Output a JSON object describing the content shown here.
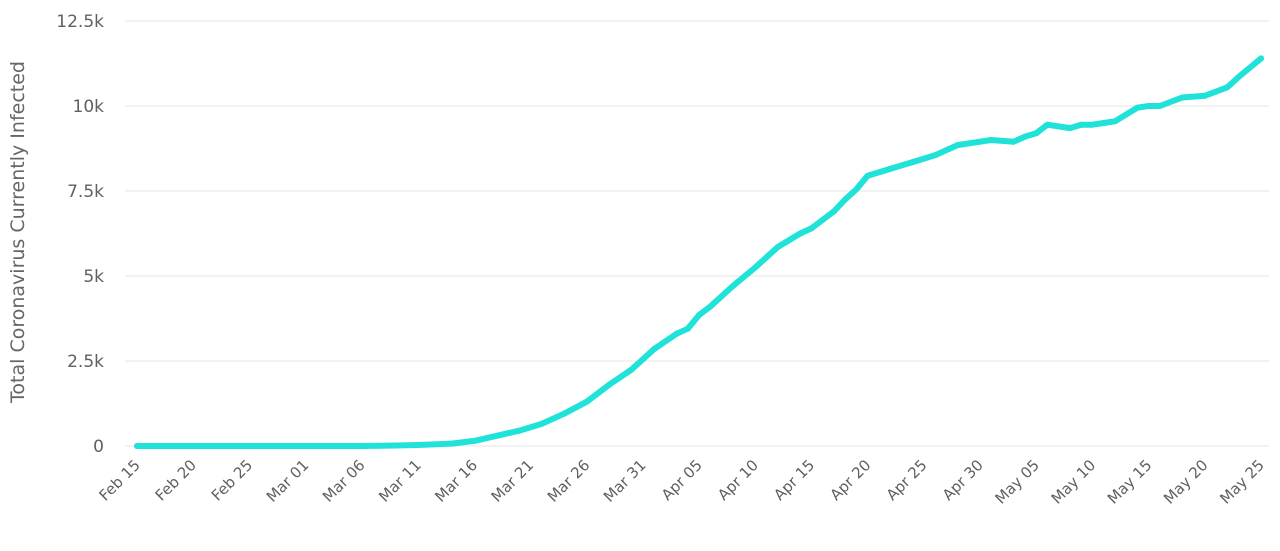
{
  "chart_data": {
    "type": "line",
    "title": "",
    "xlabel": "",
    "ylabel": "Total Coronavirus Currently Infected",
    "ylim": [
      0,
      12500
    ],
    "yticks": [
      0,
      2500,
      5000,
      7500,
      10000,
      12500
    ],
    "ytick_labels": [
      "0",
      "2.5k",
      "5k",
      "7.5k",
      "10k",
      "12.5k"
    ],
    "xtick_labels": [
      "Feb 15",
      "Feb 20",
      "Feb 25",
      "Mar 01",
      "Mar 06",
      "Mar 11",
      "Mar 16",
      "Mar 21",
      "Mar 26",
      "Mar 31",
      "Apr 05",
      "Apr 10",
      "Apr 15",
      "Apr 20",
      "Apr 25",
      "Apr 30",
      "May 05",
      "May 10",
      "May 15",
      "May 20",
      "May 25"
    ],
    "xlim": [
      "2020-02-15",
      "2020-05-25"
    ],
    "grid": true,
    "legend": false,
    "colors": {
      "line": "#1fe2d8",
      "grid": "#e6e6e6",
      "tick_text": "#606060"
    },
    "series": [
      {
        "x": [
          "2020-02-15",
          "2020-02-20",
          "2020-02-25",
          "2020-03-01",
          "2020-03-06",
          "2020-03-09",
          "2020-03-11",
          "2020-03-14",
          "2020-03-16",
          "2020-03-18",
          "2020-03-20",
          "2020-03-22",
          "2020-03-24",
          "2020-03-26",
          "2020-03-28",
          "2020-03-30",
          "2020-04-01",
          "2020-04-03",
          "2020-04-04",
          "2020-04-05",
          "2020-04-06",
          "2020-04-08",
          "2020-04-10",
          "2020-04-12",
          "2020-04-14",
          "2020-04-15",
          "2020-04-17",
          "2020-04-18",
          "2020-04-19",
          "2020-04-20",
          "2020-04-22",
          "2020-04-24",
          "2020-04-26",
          "2020-04-28",
          "2020-04-30",
          "2020-05-01",
          "2020-05-03",
          "2020-05-04",
          "2020-05-05",
          "2020-05-06",
          "2020-05-08",
          "2020-05-09",
          "2020-05-10",
          "2020-05-11",
          "2020-05-12",
          "2020-05-14",
          "2020-05-15",
          "2020-05-16",
          "2020-05-18",
          "2020-05-20",
          "2020-05-22",
          "2020-05-23",
          "2020-05-25"
        ],
        "y": [
          0,
          0,
          0,
          0,
          0,
          15,
          30,
          70,
          150,
          300,
          450,
          650,
          950,
          1300,
          1800,
          2250,
          2850,
          3300,
          3450,
          3850,
          4100,
          4700,
          5250,
          5850,
          6250,
          6400,
          6900,
          7250,
          7550,
          7950,
          8150,
          8350,
          8550,
          8850,
          8950,
          9000,
          8950,
          9100,
          9200,
          9450,
          9350,
          9450,
          9450,
          9500,
          9550,
          9950,
          10000,
          10000,
          10250,
          10300,
          10550,
          10850,
          11400
        ]
      }
    ]
  }
}
